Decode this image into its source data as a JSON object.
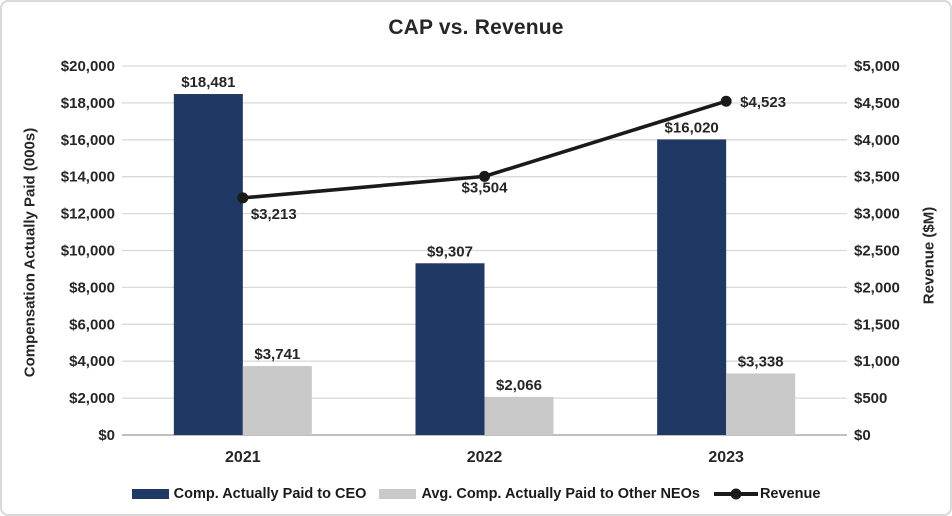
{
  "title": "CAP vs. Revenue",
  "chart_data": {
    "type": "combo-bar-line",
    "categories": [
      "2021",
      "2022",
      "2023"
    ],
    "series": [
      {
        "name": "Comp. Actually Paid to CEO",
        "type": "bar",
        "axis": "left",
        "color": "#1f3864",
        "values": [
          18481,
          9307,
          16020
        ],
        "labels": [
          "$18,481",
          "$9,307",
          "$16,020"
        ]
      },
      {
        "name": "Avg. Comp. Actually Paid to Other NEOs",
        "type": "bar",
        "axis": "left",
        "color": "#c9c9ca",
        "values": [
          3741,
          2066,
          3338
        ],
        "labels": [
          "$3,741",
          "$2,066",
          "$3,338"
        ]
      },
      {
        "name": "Revenue",
        "type": "line",
        "axis": "right",
        "color": "#1a1a1a",
        "values": [
          3213,
          3504,
          4523
        ],
        "labels": [
          "$3,213",
          "$3,504",
          "$4,523"
        ]
      }
    ],
    "left_axis": {
      "title": "Compensation Actually Paid (000s)",
      "min": 0,
      "max": 20000,
      "step": 2000,
      "ticks_top_down": [
        "$20,000",
        "$18,000",
        "$16,000",
        "$14,000",
        "$12,000",
        "$10,000",
        "$8,000",
        "$6,000",
        "$4,000",
        "$2,000",
        "$0"
      ]
    },
    "right_axis": {
      "title": "Revenue ($M)",
      "min": 0,
      "max": 5000,
      "step": 500,
      "ticks_top_down": [
        "$5,000",
        "$4,500",
        "$4,000",
        "$3,500",
        "$3,000",
        "$2,500",
        "$2,000",
        "$1,500",
        "$1,000",
        "$500",
        "$0"
      ]
    },
    "grid": true,
    "legend_position": "bottom",
    "colors": {
      "gridline": "#d9d9d9",
      "baseline": "#bfbfbf",
      "text": "#262626"
    }
  }
}
